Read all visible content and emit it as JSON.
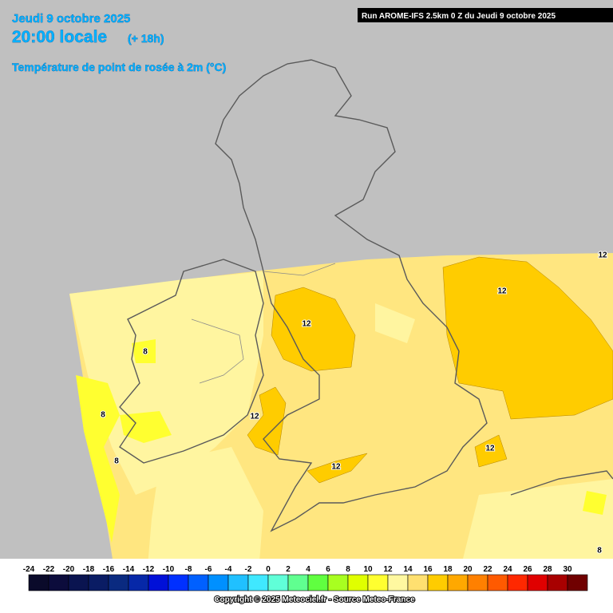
{
  "header": {
    "date": "Jeudi 9 octobre 2025",
    "time": "20:00 locale",
    "lead": "(+ 18h)",
    "title": "Température de point de rosée à 2m (°C)",
    "run": "Run AROME-IFS 2.5km 0 Z du Jeudi 9 octobre 2025"
  },
  "legend": {
    "ticks": [
      -24,
      -22,
      -20,
      -18,
      -16,
      -14,
      -12,
      -10,
      -8,
      -6,
      -4,
      -2,
      0,
      2,
      4,
      6,
      8,
      10,
      12,
      14,
      16,
      18,
      20,
      22,
      24,
      26,
      28,
      30
    ],
    "colors": [
      "#0a0a2a",
      "#0c0c3c",
      "#0a1450",
      "#0a1c64",
      "#0a2a80",
      "#0628a8",
      "#0010d8",
      "#0030ff",
      "#0060ff",
      "#0090ff",
      "#20c0ff",
      "#40e8ff",
      "#60ffd8",
      "#60ff90",
      "#60ff40",
      "#a8ff20",
      "#e0ff00",
      "#ffff30",
      "#fff8a0",
      "#ffe070",
      "#ffcc00",
      "#ffa800",
      "#ff8000",
      "#ff5a00",
      "#ff2800",
      "#e00000",
      "#a80000",
      "#700000"
    ]
  },
  "contour_labels": [
    12,
    12,
    12,
    12,
    12,
    12,
    8,
    8,
    8,
    8
  ],
  "footer": "Copyright © 2025 Meteociel.fr - Source Meteo-France"
}
